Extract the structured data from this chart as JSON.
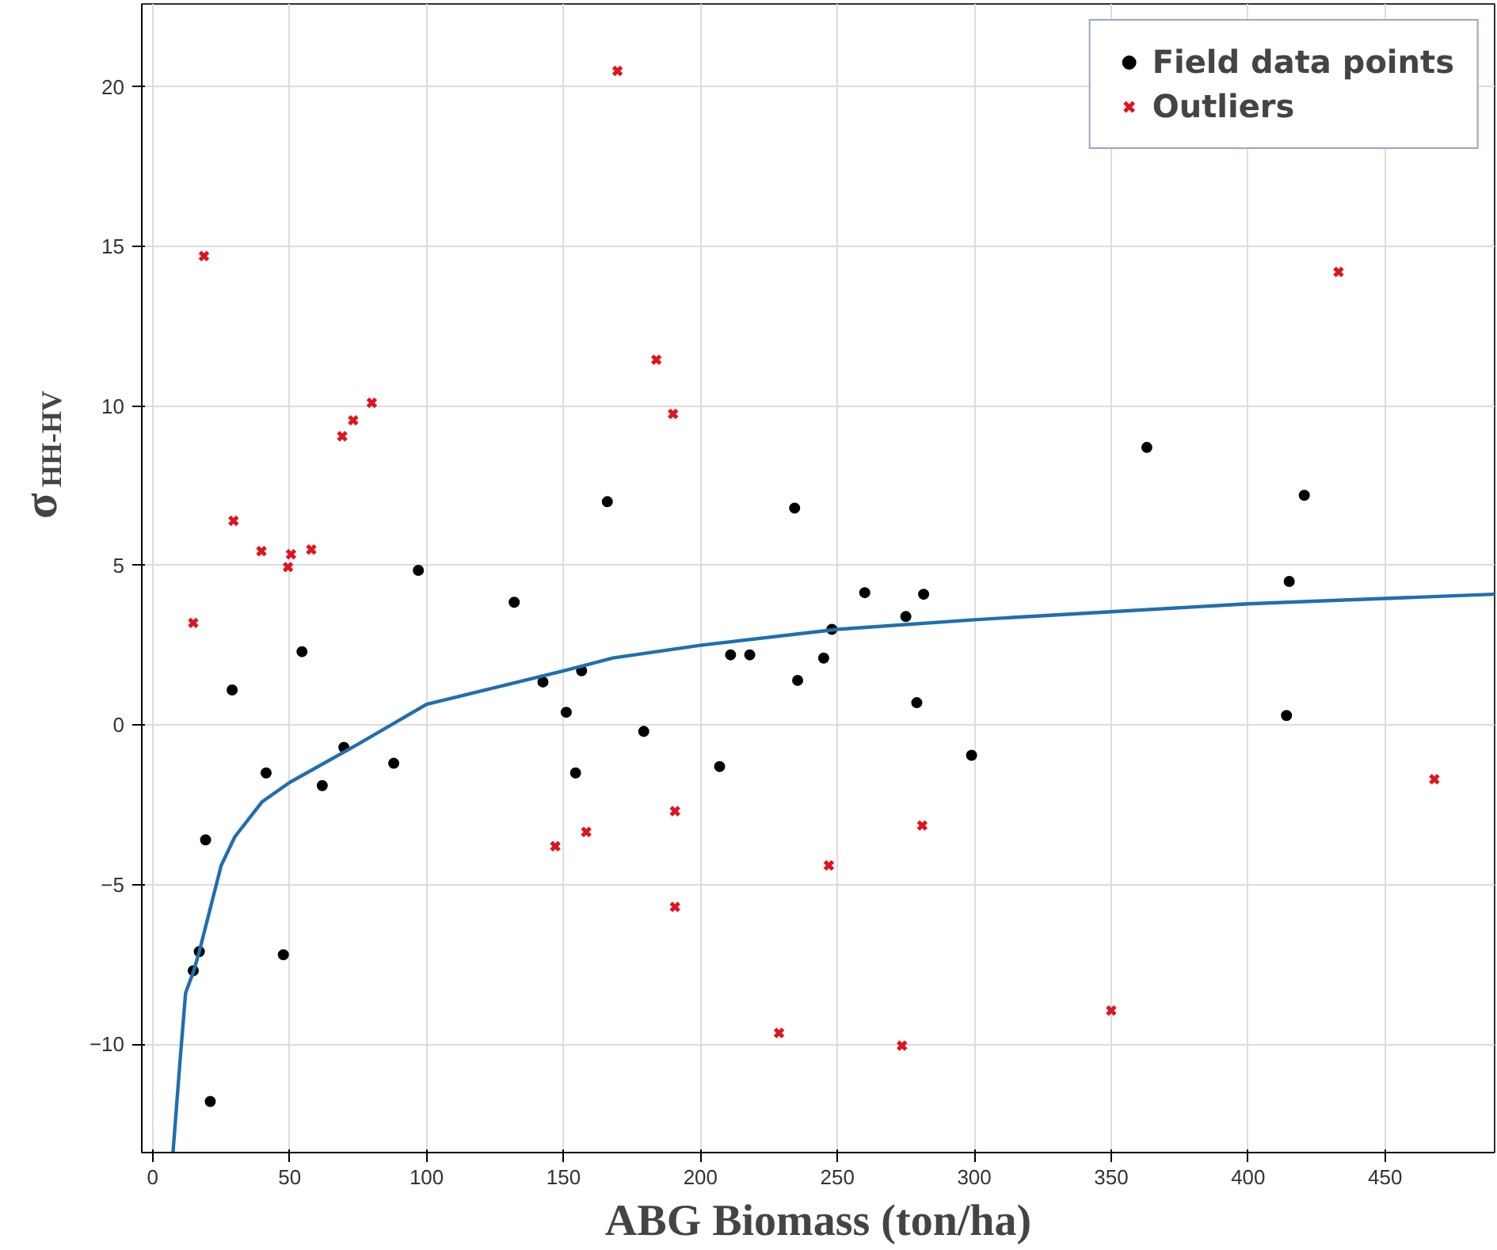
{
  "chart_data": {
    "type": "scatter",
    "xlabel": "ABG Biomass (ton/ha)",
    "ylabel": "σ$_{HH-HV}$",
    "xlim": [
      -4,
      490
    ],
    "ylim": [
      -13.4,
      22.6
    ],
    "xticks": [
      0,
      50,
      100,
      150,
      200,
      250,
      300,
      350,
      400,
      450
    ],
    "yticks": [
      -10,
      -5,
      0,
      5,
      10,
      15,
      20
    ],
    "grid": true,
    "legend": "top right",
    "series": [
      {
        "name": "Field data points",
        "color": "#000000",
        "marker": "circle",
        "x": [
          14.8,
          17,
          19.3,
          21,
          29,
          41.4,
          47.7,
          54.5,
          61.9,
          69.8,
          88,
          97,
          132,
          142.5,
          151,
          154.4,
          156.6,
          166,
          179.3,
          207,
          211,
          218,
          234.4,
          235.5,
          245,
          248,
          260,
          275,
          279,
          281.5,
          299,
          363,
          414,
          415,
          420.5
        ],
        "values": [
          -7.7,
          -7.1,
          -3.6,
          -11.8,
          1.1,
          -1.5,
          -7.2,
          2.3,
          -1.9,
          -0.7,
          -1.2,
          4.85,
          3.85,
          1.35,
          0.4,
          -1.5,
          1.7,
          7.0,
          -0.2,
          -1.3,
          2.2,
          2.2,
          6.8,
          1.4,
          2.1,
          3.0,
          4.15,
          3.4,
          0.7,
          4.1,
          -0.95,
          8.7,
          0.3,
          4.5,
          7.2
        ]
      },
      {
        "name": "Outliers",
        "color": "#e0141e",
        "marker": "cross",
        "x": [
          14.8,
          18.7,
          29.5,
          39.7,
          49.4,
          50.5,
          57.9,
          69.2,
          73.2,
          80,
          169.7,
          183.9,
          190,
          147,
          158.3,
          190.7,
          190.7,
          228.7,
          246.9,
          273.6,
          281,
          350,
          433,
          468
        ],
        "values": [
          3.2,
          14.7,
          6.4,
          5.45,
          4.95,
          5.35,
          5.5,
          9.05,
          9.55,
          10.1,
          20.5,
          11.45,
          9.75,
          -3.8,
          -3.35,
          -2.7,
          -5.7,
          -9.65,
          -4.4,
          -10.05,
          -3.15,
          -8.95,
          14.2,
          -1.7
        ]
      },
      {
        "type": "line",
        "color": "#1f6fb0",
        "marker": "none",
        "line_style": "solid",
        "x": [
          7.4,
          10,
          12,
          15,
          17,
          25,
          30,
          40,
          50,
          75,
          100,
          150,
          168,
          200,
          250,
          300,
          350,
          400,
          490
        ],
        "values": [
          -13.4,
          -10.5,
          -8.4,
          -7.7,
          -7.1,
          -4.4,
          -3.5,
          -2.4,
          -1.8,
          -0.6,
          0.65,
          1.7,
          2.1,
          2.5,
          3.0,
          3.3,
          3.55,
          3.8,
          4.1
        ]
      }
    ]
  }
}
